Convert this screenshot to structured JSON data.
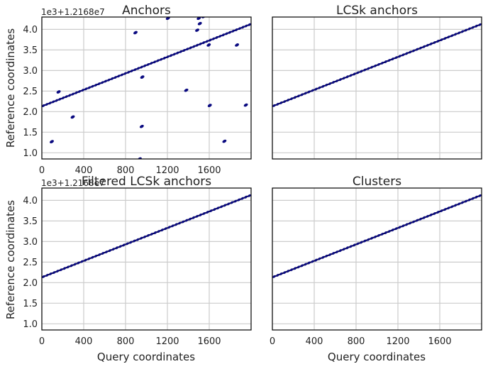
{
  "figure": {
    "xlabel": "Query coordinates",
    "ylabel": "Reference coordinates",
    "offset_label": "1e3+1.2168e7"
  },
  "chart_data": [
    {
      "type": "scatter",
      "title": "Anchors",
      "xlim": [
        0,
        2000
      ],
      "ylim": [
        0.85,
        4.3
      ],
      "x_ticks": [
        "0",
        "400",
        "800",
        "1200",
        "1600"
      ],
      "y_ticks": [
        "1.0",
        "1.5",
        "2.0",
        "2.5",
        "3.0",
        "3.5",
        "4.0"
      ],
      "grid": true,
      "point_color": "#0a0a80",
      "line_color": "#000000",
      "diagonal": {
        "x": [
          0,
          2000
        ],
        "y": [
          2.13,
          4.13
        ],
        "count": 64
      },
      "points": [
        [
          95,
          1.27
        ],
        [
          160,
          2.48
        ],
        [
          295,
          1.87
        ],
        [
          895,
          3.92
        ],
        [
          935,
          0.85
        ],
        [
          955,
          1.64
        ],
        [
          960,
          2.84
        ],
        [
          1205,
          4.27
        ],
        [
          1380,
          2.52
        ],
        [
          1485,
          3.98
        ],
        [
          1500,
          4.27
        ],
        [
          1510,
          4.14
        ],
        [
          1545,
          4.31
        ],
        [
          1595,
          3.62
        ],
        [
          1605,
          2.15
        ],
        [
          1745,
          1.28
        ],
        [
          1865,
          3.62
        ],
        [
          1950,
          2.16
        ]
      ]
    },
    {
      "type": "scatter",
      "title": "LCSk anchors",
      "xlim": [
        0,
        2000
      ],
      "ylim": [
        0.85,
        4.3
      ],
      "x_ticks": [],
      "y_ticks": [],
      "grid": true,
      "point_color": "#0a0a80",
      "line_color": "#000000",
      "diagonal": {
        "x": [
          0,
          2000
        ],
        "y": [
          2.13,
          4.13
        ],
        "count": 60
      },
      "points": []
    },
    {
      "type": "scatter",
      "title": "Filtered LCSk anchors",
      "xlim": [
        0,
        2000
      ],
      "ylim": [
        0.85,
        4.3
      ],
      "x_ticks": [
        "0",
        "400",
        "800",
        "1200",
        "1600"
      ],
      "y_ticks": [
        "1.0",
        "1.5",
        "2.0",
        "2.5",
        "3.0",
        "3.5",
        "4.0"
      ],
      "grid": true,
      "point_color": "#0a0a80",
      "line_color": "#000000",
      "diagonal": {
        "x": [
          0,
          2000
        ],
        "y": [
          2.13,
          4.13
        ],
        "count": 60
      },
      "points": []
    },
    {
      "type": "scatter",
      "title": "Clusters",
      "xlim": [
        0,
        2000
      ],
      "ylim": [
        0.85,
        4.3
      ],
      "x_ticks": [
        "0",
        "400",
        "800",
        "1200",
        "1600"
      ],
      "y_ticks": [],
      "grid": true,
      "point_color": "#0a0a80",
      "line_color": "#000000",
      "diagonal": {
        "x": [
          0,
          2000
        ],
        "y": [
          2.13,
          4.13
        ],
        "count": 60
      },
      "points": []
    }
  ]
}
